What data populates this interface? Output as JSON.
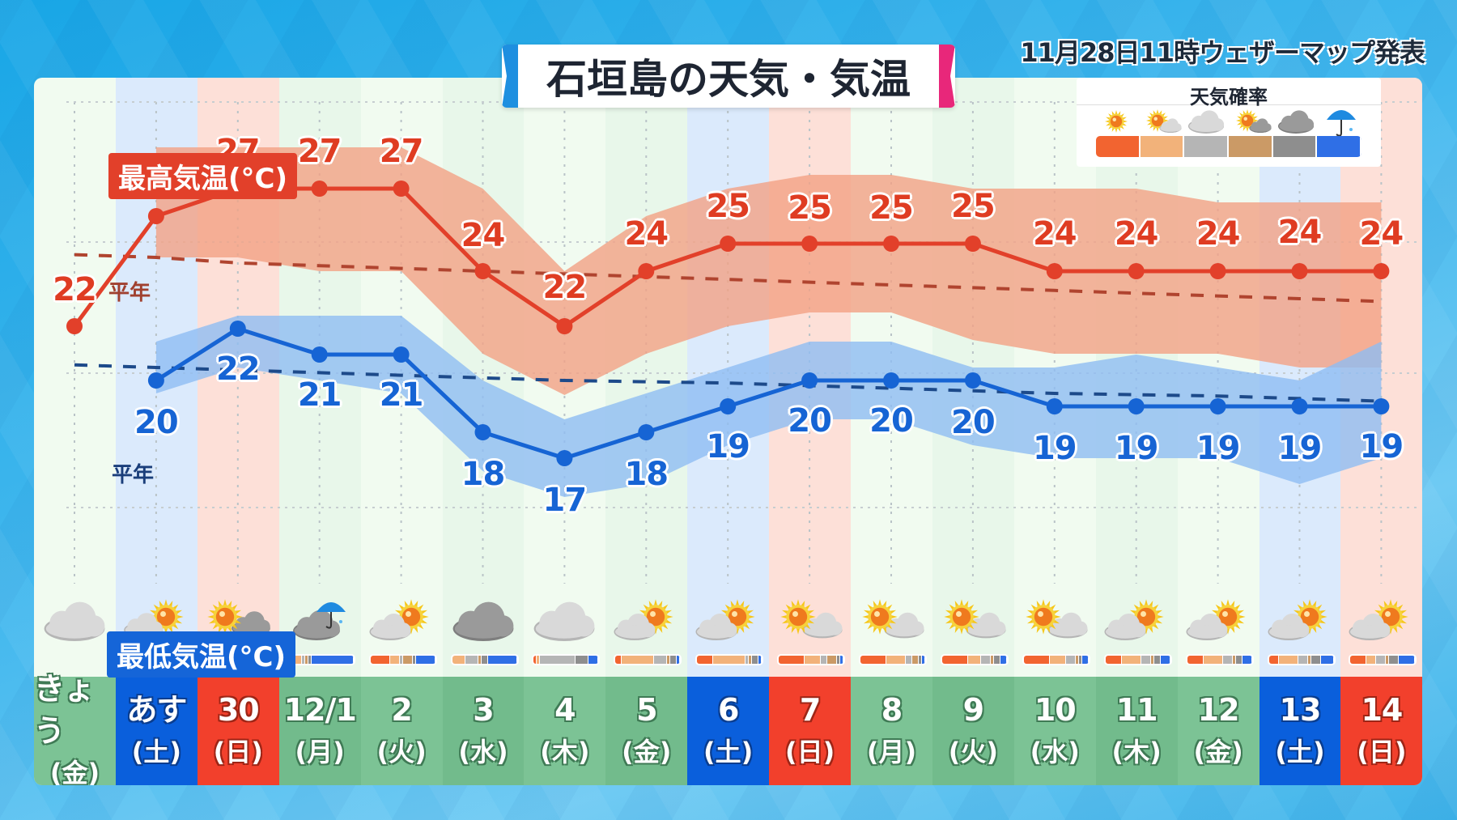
{
  "header": {
    "title": "石垣島の天気・気温",
    "issued": "11月28日11時ウェザーマップ発表"
  },
  "labels": {
    "max_temp": "最高気温(°C)",
    "min_temp": "最低気温(°C)",
    "normal_max": "平年",
    "normal_min": "平年"
  },
  "legend": {
    "title": "天気確率",
    "items": [
      {
        "icon": "sunny-icon",
        "glyph": "☀",
        "color": "#f26430"
      },
      {
        "icon": "sunny-then-cloudy-icon",
        "glyph": "🌤",
        "color": "#f2b27a"
      },
      {
        "icon": "cloudy-icon",
        "glyph": "☁",
        "color": "#b5b5b5"
      },
      {
        "icon": "sunny-sometimes-cloudy-icon",
        "glyph": "⛅",
        "color": "#cb9a66"
      },
      {
        "icon": "dark-cloudy-icon",
        "glyph": "☁",
        "color": "#8e8e8e"
      },
      {
        "icon": "umbrella-icon",
        "glyph": "☂",
        "color": "#2f6fe6"
      }
    ]
  },
  "colors": {
    "max_line": "#e2402a",
    "max_band": "#f2a184",
    "min_line": "#1664d4",
    "min_band": "#8fbdf2",
    "normal_max": "#b0442f",
    "normal_min": "#1d4a8a",
    "saturday": "#0a5fdc",
    "sunday": "#f2402c",
    "weekday": "#7cc395"
  },
  "days": [
    {
      "date": "きょう",
      "weekday": "(金)",
      "type": "weekday",
      "weather": "cloudy",
      "prob": [
        0,
        0,
        0,
        0,
        0,
        0
      ]
    },
    {
      "date": "あす",
      "weekday": "(土)",
      "type": "sat",
      "weather": "cloudy-then-sunny",
      "prob": [
        5,
        30,
        30,
        5,
        20,
        10
      ]
    },
    {
      "date": "30",
      "weekday": "(日)",
      "type": "sun",
      "weather": "sunny-then-cloudy",
      "prob": [
        35,
        15,
        5,
        5,
        5,
        35
      ]
    },
    {
      "date": "12/1",
      "weekday": "(月)",
      "type": "weekday",
      "weather": "cloudy-sometimes-rain",
      "prob": [
        10,
        10,
        5,
        5,
        5,
        65
      ]
    },
    {
      "date": "2",
      "weekday": "(火)",
      "type": "weekday",
      "weather": "cloudy-sometimes-sunny",
      "prob": [
        30,
        15,
        5,
        15,
        5,
        30
      ]
    },
    {
      "date": "3",
      "weekday": "(水)",
      "type": "weekday",
      "weather": "cloudy",
      "prob": [
        0,
        20,
        20,
        5,
        10,
        45
      ]
    },
    {
      "date": "4",
      "weekday": "(木)",
      "type": "weekday",
      "weather": "cloudy",
      "prob": [
        5,
        5,
        55,
        0,
        20,
        15
      ]
    },
    {
      "date": "5",
      "weekday": "(金)",
      "type": "weekday",
      "weather": "cloudy-sometimes-sunny",
      "prob": [
        10,
        50,
        20,
        5,
        10,
        5
      ]
    },
    {
      "date": "6",
      "weekday": "(土)",
      "type": "sat",
      "weather": "cloudy-sometimes-sunny",
      "prob": [
        25,
        50,
        5,
        5,
        10,
        5
      ]
    },
    {
      "date": "7",
      "weekday": "(日)",
      "type": "sun",
      "weather": "sunny-sometimes-cloudy",
      "prob": [
        40,
        25,
        10,
        15,
        5,
        5
      ]
    },
    {
      "date": "8",
      "weekday": "(月)",
      "type": "weekday",
      "weather": "sunny-sometimes-cloudy",
      "prob": [
        40,
        30,
        10,
        10,
        5,
        5
      ]
    },
    {
      "date": "9",
      "weekday": "(火)",
      "type": "weekday",
      "weather": "sunny-sometimes-cloudy",
      "prob": [
        40,
        20,
        15,
        5,
        10,
        10
      ]
    },
    {
      "date": "10",
      "weekday": "(水)",
      "type": "weekday",
      "weather": "sunny-sometimes-cloudy",
      "prob": [
        40,
        25,
        15,
        5,
        5,
        10
      ]
    },
    {
      "date": "11",
      "weekday": "(木)",
      "type": "weekday",
      "weather": "cloudy-sometimes-sunny",
      "prob": [
        25,
        30,
        15,
        5,
        10,
        15
      ]
    },
    {
      "date": "12",
      "weekday": "(金)",
      "type": "weekday",
      "weather": "cloudy-sometimes-sunny",
      "prob": [
        25,
        30,
        15,
        5,
        10,
        15
      ]
    },
    {
      "date": "13",
      "weekday": "(土)",
      "type": "sat",
      "weather": "cloudy-sometimes-sunny",
      "prob": [
        15,
        30,
        15,
        5,
        15,
        20
      ]
    },
    {
      "date": "14",
      "weekday": "(日)",
      "type": "sun",
      "weather": "cloudy-sometimes-sunny",
      "prob": [
        25,
        15,
        15,
        5,
        15,
        25
      ]
    }
  ],
  "chart_data": {
    "type": "line",
    "title": "石垣島の天気・気温",
    "subtitle": "11月28日11時ウェザーマップ発表",
    "xlabel": "",
    "ylabel": "気温(°C)",
    "categories": [
      "きょう(金)",
      "あす(土)",
      "30(日)",
      "12/1(月)",
      "2(火)",
      "3(水)",
      "4(木)",
      "5(金)",
      "6(土)",
      "7(日)",
      "8(月)",
      "9(火)",
      "10(水)",
      "11(木)",
      "12(金)",
      "13(土)",
      "14(日)"
    ],
    "series": [
      {
        "name": "最高気温(°C)",
        "values": [
          22,
          26,
          27,
          27,
          27,
          24,
          22,
          24,
          25,
          25,
          25,
          25,
          24,
          24,
          24,
          24,
          24
        ],
        "band_upper": [
          null,
          28.5,
          28.5,
          28.5,
          28.5,
          27,
          24,
          26,
          27,
          27.5,
          27.5,
          27,
          27,
          27,
          26.5,
          26.5,
          26.5
        ],
        "band_lower": [
          null,
          24.5,
          24.5,
          24,
          24,
          21,
          19.5,
          21,
          22,
          22.5,
          22.5,
          21.5,
          21,
          21,
          21,
          20.5,
          20.5
        ]
      },
      {
        "name": "最低気温(°C)",
        "values": [
          null,
          20,
          22,
          21,
          21,
          18,
          17,
          18,
          19,
          20,
          20,
          20,
          19,
          19,
          19,
          19,
          19
        ],
        "band_upper": [
          null,
          21.5,
          22.5,
          22.5,
          22.5,
          20,
          18.5,
          19.5,
          20.5,
          21.5,
          21.5,
          20.5,
          20.5,
          21,
          20.5,
          20,
          21.5
        ],
        "band_lower": [
          null,
          19.5,
          20.5,
          20,
          19.5,
          16.5,
          15.5,
          16,
          17.5,
          18.5,
          18.5,
          17.5,
          17,
          17,
          17,
          16,
          17
        ]
      },
      {
        "name": "平年 (最高)",
        "values": [
          24.6,
          24.5,
          24.3,
          24.2,
          24.1,
          24.0,
          23.9,
          23.8,
          23.7,
          23.6,
          23.5,
          23.4,
          23.3,
          23.2,
          23.1,
          23.0,
          22.9
        ],
        "style": "dashed"
      },
      {
        "name": "平年 (最低)",
        "values": [
          20.6,
          20.5,
          20.4,
          20.3,
          20.2,
          20.1,
          20.0,
          19.95,
          19.9,
          19.8,
          19.7,
          19.6,
          19.5,
          19.45,
          19.4,
          19.3,
          19.2
        ],
        "style": "dashed"
      }
    ],
    "data_labels": {
      "max": [
        "22",
        "26",
        "27",
        "27",
        "27",
        "24",
        "22",
        "24",
        "25",
        "25",
        "25",
        "25",
        "24",
        "24",
        "24",
        "24",
        "24"
      ],
      "min": [
        "",
        "20",
        "22",
        "21",
        "21",
        "18",
        "17",
        "18",
        "19",
        "20",
        "20",
        "20",
        "19",
        "19",
        "19",
        "19",
        "19"
      ]
    },
    "legend": [
      "晴れ",
      "晴れ時々曇り",
      "曇り",
      "曇り時々晴れ",
      "曇り(濃)",
      "雨"
    ],
    "grid": true
  }
}
